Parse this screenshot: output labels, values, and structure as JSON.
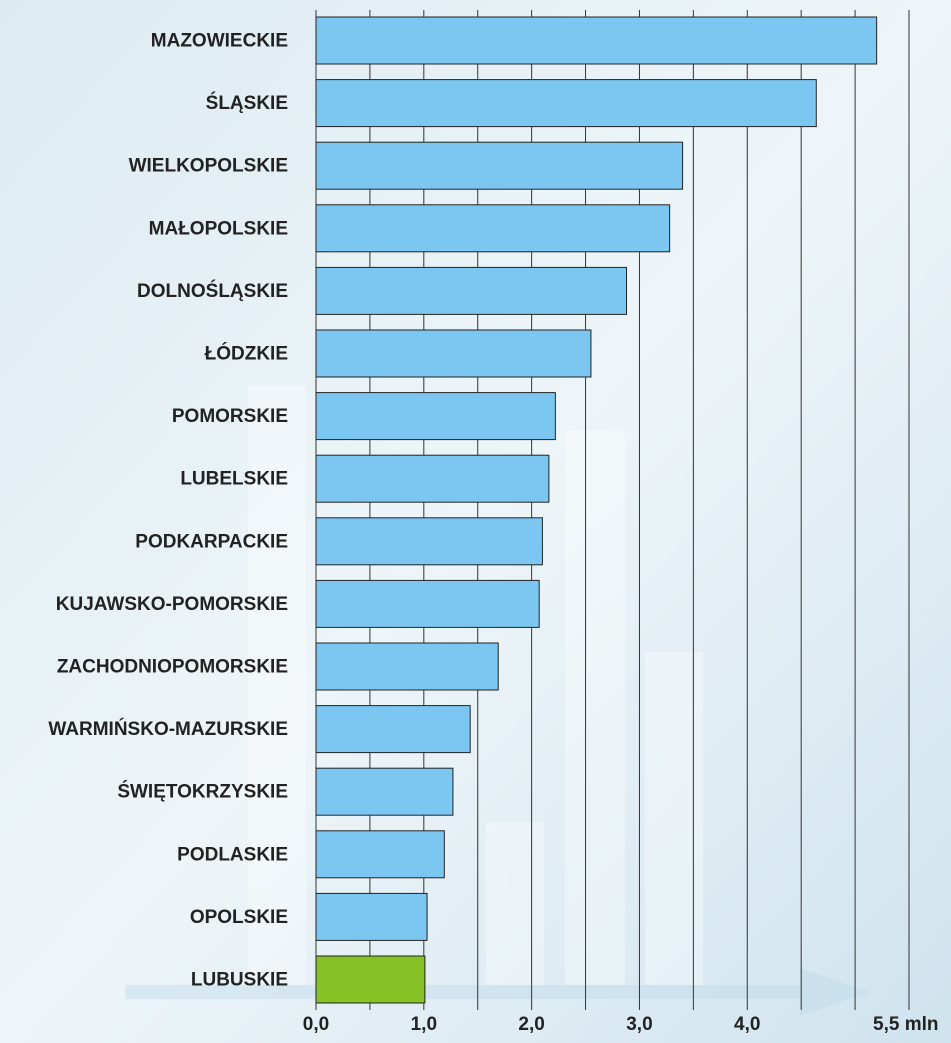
{
  "chart_data": {
    "type": "hbar",
    "categories": [
      "MAZOWIECKIE",
      "ŚLĄSKIE",
      "WIELKOPOLSKIE",
      "MAŁOPOLSKIE",
      "DOLNOŚLĄSKIE",
      "ŁÓDZKIE",
      "POMORSKIE",
      "LUBELSKIE",
      "PODKARPACKIE",
      "KUJAWSKO-POMORSKIE",
      "ZACHODNIOPOMORSKIE",
      "WARMIŃSKO-MAZURSKIE",
      "ŚWIĘTOKRZYSKIE",
      "PODLASKIE",
      "OPOLSKIE",
      "LUBUSKIE"
    ],
    "values": [
      5.2,
      4.64,
      3.4,
      3.28,
      2.88,
      2.55,
      2.22,
      2.16,
      2.1,
      2.07,
      1.69,
      1.43,
      1.27,
      1.19,
      1.03,
      1.01
    ],
    "colors": [
      "#7cc7f2",
      "#7cc7f2",
      "#7cc7f2",
      "#7cc7f2",
      "#7cc7f2",
      "#7cc7f2",
      "#7cc7f2",
      "#7cc7f2",
      "#7cc7f2",
      "#7cc7f2",
      "#7cc7f2",
      "#7cc7f2",
      "#7cc7f2",
      "#7cc7f2",
      "#7cc7f2",
      "#86c226"
    ],
    "xlim": [
      0,
      5.5
    ],
    "xticks": [
      {
        "value": 0,
        "label": "0,0"
      },
      {
        "value": 1,
        "label": "1,0"
      },
      {
        "value": 2,
        "label": "2,0"
      },
      {
        "value": 3,
        "label": "3,0"
      },
      {
        "value": 4,
        "label": "4,0"
      },
      {
        "value": 5.5,
        "label": "5,5 mln"
      }
    ],
    "xgrid": [
      0,
      0.5,
      1,
      1.5,
      2,
      2.5,
      3,
      3.5,
      4,
      4.5,
      5,
      5.5
    ]
  }
}
